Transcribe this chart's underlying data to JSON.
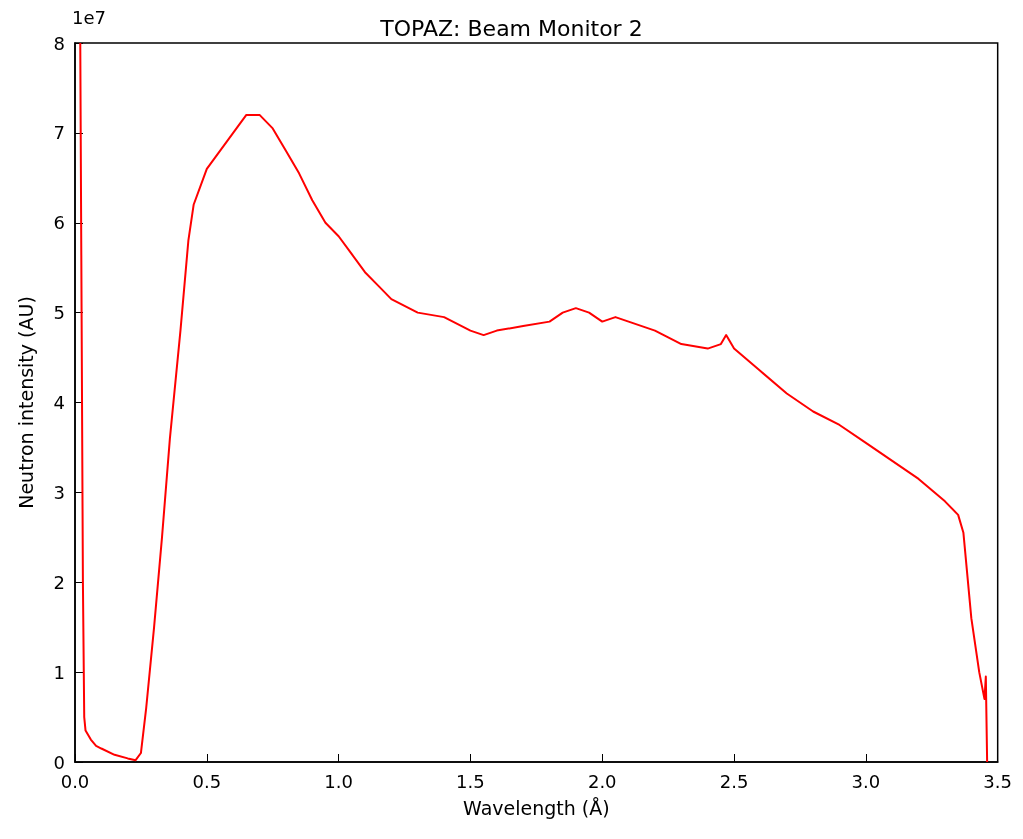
{
  "chart_data": {
    "type": "line",
    "title": "TOPAZ: Beam Monitor 2",
    "xlabel": "Wavelength (Å)",
    "ylabel": "Neutron intensity (AU)",
    "annotations": [
      "1e7"
    ],
    "x": [
      0.02,
      0.025,
      0.03,
      0.035,
      0.04,
      0.06,
      0.08,
      0.1,
      0.15,
      0.2,
      0.23,
      0.25,
      0.27,
      0.3,
      0.33,
      0.36,
      0.4,
      0.43,
      0.45,
      0.5,
      0.55,
      0.6,
      0.65,
      0.7,
      0.75,
      0.8,
      0.85,
      0.9,
      0.95,
      1.0,
      1.05,
      1.1,
      1.15,
      1.2,
      1.3,
      1.4,
      1.5,
      1.55,
      1.6,
      1.7,
      1.8,
      1.85,
      1.9,
      1.95,
      2.0,
      2.05,
      2.1,
      2.2,
      2.3,
      2.4,
      2.45,
      2.47,
      2.5,
      2.6,
      2.7,
      2.8,
      2.9,
      3.0,
      3.1,
      3.2,
      3.3,
      3.35,
      3.37,
      3.4,
      3.43,
      3.45,
      3.455,
      3.46
    ],
    "series": [
      {
        "color": "#ff0000",
        "values": [
          8.0,
          5.0,
          2.0,
          0.5,
          0.35,
          0.25,
          0.18,
          0.15,
          0.08,
          0.04,
          0.02,
          0.1,
          0.6,
          1.5,
          2.5,
          3.6,
          4.8,
          5.8,
          6.2,
          6.6,
          6.8,
          7.0,
          7.2,
          7.2,
          7.05,
          6.8,
          6.55,
          6.25,
          6.0,
          5.85,
          5.65,
          5.45,
          5.3,
          5.15,
          5.0,
          4.95,
          4.8,
          4.75,
          4.8,
          4.85,
          4.9,
          5.0,
          5.05,
          5.0,
          4.9,
          4.95,
          4.9,
          4.8,
          4.65,
          4.6,
          4.65,
          4.75,
          4.6,
          4.35,
          4.1,
          3.9,
          3.75,
          3.55,
          3.35,
          3.15,
          2.9,
          2.75,
          2.55,
          1.6,
          1.0,
          0.7,
          0.95,
          0.0
        ]
      }
    ],
    "xlim": [
      0,
      3.5
    ],
    "xticks": [
      {
        "value": 0,
        "label": "0.0"
      },
      {
        "value": 0.5,
        "label": "0.5"
      },
      {
        "value": 1,
        "label": "1.0"
      },
      {
        "value": 1.5,
        "label": "1.5"
      },
      {
        "value": 2,
        "label": "2.0"
      },
      {
        "value": 2.5,
        "label": "2.5"
      },
      {
        "value": 3,
        "label": "3.0"
      },
      {
        "value": 3.5,
        "label": "3.5"
      }
    ],
    "ylim": [
      0,
      8
    ],
    "yticks": [
      0,
      1,
      2,
      3,
      4,
      5,
      6,
      7,
      8
    ],
    "grid": false,
    "marker": "none",
    "line_style": "solid"
  }
}
